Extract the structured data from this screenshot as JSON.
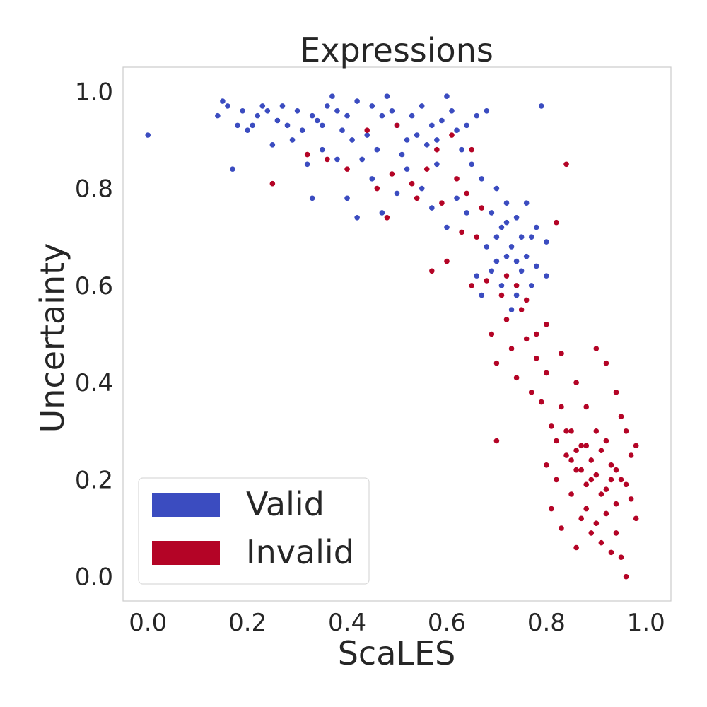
{
  "chart_data": {
    "type": "scatter",
    "title": "Expressions",
    "xlabel": "ScaLES",
    "ylabel": "Uncertainty",
    "xlim": [
      -0.05,
      1.05
    ],
    "ylim": [
      -0.05,
      1.05
    ],
    "xticks": [
      "0.0",
      "0.2",
      "0.4",
      "0.6",
      "0.8",
      "1.0"
    ],
    "yticks": [
      "0.0",
      "0.2",
      "0.4",
      "0.6",
      "0.8",
      "1.0"
    ],
    "grid": false,
    "legend": {
      "position": "bottom-left"
    },
    "series": [
      {
        "name": "Valid",
        "color": "#3b4cc0",
        "points": [
          [
            0.0,
            0.91
          ],
          [
            0.14,
            0.95
          ],
          [
            0.15,
            0.98
          ],
          [
            0.16,
            0.97
          ],
          [
            0.17,
            0.84
          ],
          [
            0.18,
            0.93
          ],
          [
            0.19,
            0.96
          ],
          [
            0.2,
            0.92
          ],
          [
            0.21,
            0.93
          ],
          [
            0.22,
            0.95
          ],
          [
            0.23,
            0.97
          ],
          [
            0.24,
            0.96
          ],
          [
            0.25,
            0.89
          ],
          [
            0.26,
            0.94
          ],
          [
            0.27,
            0.97
          ],
          [
            0.28,
            0.93
          ],
          [
            0.29,
            0.9
          ],
          [
            0.3,
            0.96
          ],
          [
            0.31,
            0.92
          ],
          [
            0.32,
            0.85
          ],
          [
            0.33,
            0.95
          ],
          [
            0.34,
            0.94
          ],
          [
            0.35,
            0.93
          ],
          [
            0.36,
            0.97
          ],
          [
            0.37,
            0.99
          ],
          [
            0.38,
            0.96
          ],
          [
            0.39,
            0.92
          ],
          [
            0.4,
            0.95
          ],
          [
            0.41,
            0.9
          ],
          [
            0.42,
            0.98
          ],
          [
            0.43,
            0.86
          ],
          [
            0.44,
            0.91
          ],
          [
            0.45,
            0.97
          ],
          [
            0.46,
            0.88
          ],
          [
            0.47,
            0.95
          ],
          [
            0.48,
            0.99
          ],
          [
            0.49,
            0.96
          ],
          [
            0.5,
            0.93
          ],
          [
            0.51,
            0.87
          ],
          [
            0.52,
            0.9
          ],
          [
            0.53,
            0.95
          ],
          [
            0.54,
            0.91
          ],
          [
            0.55,
            0.97
          ],
          [
            0.56,
            0.89
          ],
          [
            0.57,
            0.93
          ],
          [
            0.58,
            0.9
          ],
          [
            0.59,
            0.94
          ],
          [
            0.6,
            0.99
          ],
          [
            0.61,
            0.96
          ],
          [
            0.62,
            0.92
          ],
          [
            0.63,
            0.88
          ],
          [
            0.64,
            0.93
          ],
          [
            0.65,
            0.85
          ],
          [
            0.66,
            0.95
          ],
          [
            0.67,
            0.82
          ],
          [
            0.68,
            0.96
          ],
          [
            0.69,
            0.75
          ],
          [
            0.7,
            0.8
          ],
          [
            0.71,
            0.72
          ],
          [
            0.72,
            0.77
          ],
          [
            0.73,
            0.68
          ],
          [
            0.74,
            0.74
          ],
          [
            0.75,
            0.63
          ],
          [
            0.76,
            0.66
          ],
          [
            0.77,
            0.7
          ],
          [
            0.78,
            0.64
          ],
          [
            0.79,
            0.97
          ],
          [
            0.8,
            0.62
          ],
          [
            0.7,
            0.65
          ],
          [
            0.71,
            0.6
          ],
          [
            0.68,
            0.68
          ],
          [
            0.69,
            0.63
          ],
          [
            0.72,
            0.66
          ],
          [
            0.74,
            0.58
          ],
          [
            0.73,
            0.55
          ],
          [
            0.75,
            0.7
          ],
          [
            0.66,
            0.62
          ],
          [
            0.67,
            0.58
          ],
          [
            0.45,
            0.82
          ],
          [
            0.4,
            0.78
          ],
          [
            0.38,
            0.86
          ],
          [
            0.35,
            0.88
          ],
          [
            0.52,
            0.84
          ],
          [
            0.55,
            0.8
          ],
          [
            0.58,
            0.85
          ],
          [
            0.62,
            0.78
          ],
          [
            0.64,
            0.75
          ],
          [
            0.6,
            0.72
          ],
          [
            0.57,
            0.76
          ],
          [
            0.5,
            0.79
          ],
          [
            0.47,
            0.75
          ],
          [
            0.42,
            0.74
          ],
          [
            0.33,
            0.78
          ],
          [
            0.76,
            0.77
          ],
          [
            0.78,
            0.72
          ],
          [
            0.8,
            0.69
          ],
          [
            0.72,
            0.73
          ],
          [
            0.7,
            0.7
          ],
          [
            0.74,
            0.65
          ],
          [
            0.77,
            0.6
          ]
        ]
      },
      {
        "name": "Invalid",
        "color": "#b40426",
        "points": [
          [
            0.25,
            0.81
          ],
          [
            0.32,
            0.87
          ],
          [
            0.36,
            0.86
          ],
          [
            0.4,
            0.84
          ],
          [
            0.44,
            0.92
          ],
          [
            0.46,
            0.8
          ],
          [
            0.48,
            0.74
          ],
          [
            0.49,
            0.83
          ],
          [
            0.5,
            0.93
          ],
          [
            0.53,
            0.81
          ],
          [
            0.54,
            0.78
          ],
          [
            0.56,
            0.84
          ],
          [
            0.57,
            0.63
          ],
          [
            0.58,
            0.88
          ],
          [
            0.59,
            0.77
          ],
          [
            0.6,
            0.65
          ],
          [
            0.61,
            0.91
          ],
          [
            0.62,
            0.82
          ],
          [
            0.63,
            0.71
          ],
          [
            0.64,
            0.79
          ],
          [
            0.65,
            0.88
          ],
          [
            0.66,
            0.7
          ],
          [
            0.67,
            0.76
          ],
          [
            0.68,
            0.61
          ],
          [
            0.69,
            0.5
          ],
          [
            0.7,
            0.44
          ],
          [
            0.71,
            0.58
          ],
          [
            0.72,
            0.53
          ],
          [
            0.73,
            0.47
          ],
          [
            0.74,
            0.41
          ],
          [
            0.75,
            0.55
          ],
          [
            0.76,
            0.49
          ],
          [
            0.77,
            0.38
          ],
          [
            0.78,
            0.45
          ],
          [
            0.79,
            0.36
          ],
          [
            0.8,
            0.42
          ],
          [
            0.81,
            0.31
          ],
          [
            0.82,
            0.28
          ],
          [
            0.83,
            0.35
          ],
          [
            0.84,
            0.25
          ],
          [
            0.85,
            0.3
          ],
          [
            0.86,
            0.22
          ],
          [
            0.87,
            0.27
          ],
          [
            0.88,
            0.19
          ],
          [
            0.89,
            0.24
          ],
          [
            0.9,
            0.21
          ],
          [
            0.91,
            0.26
          ],
          [
            0.92,
            0.18
          ],
          [
            0.93,
            0.23
          ],
          [
            0.94,
            0.15
          ],
          [
            0.95,
            0.2
          ],
          [
            0.96,
            0.0
          ],
          [
            0.97,
            0.25
          ],
          [
            0.98,
            0.27
          ],
          [
            0.84,
            0.85
          ],
          [
            0.82,
            0.73
          ],
          [
            0.7,
            0.28
          ],
          [
            0.65,
            0.6
          ],
          [
            0.72,
            0.62
          ],
          [
            0.74,
            0.6
          ],
          [
            0.76,
            0.57
          ],
          [
            0.78,
            0.5
          ],
          [
            0.8,
            0.52
          ],
          [
            0.83,
            0.46
          ],
          [
            0.86,
            0.4
          ],
          [
            0.88,
            0.35
          ],
          [
            0.9,
            0.47
          ],
          [
            0.92,
            0.44
          ],
          [
            0.94,
            0.38
          ],
          [
            0.95,
            0.33
          ],
          [
            0.96,
            0.3
          ],
          [
            0.85,
            0.17
          ],
          [
            0.87,
            0.12
          ],
          [
            0.89,
            0.09
          ],
          [
            0.91,
            0.07
          ],
          [
            0.93,
            0.05
          ],
          [
            0.95,
            0.04
          ],
          [
            0.82,
            0.2
          ],
          [
            0.8,
            0.23
          ],
          [
            0.83,
            0.1
          ],
          [
            0.86,
            0.06
          ],
          [
            0.88,
            0.14
          ],
          [
            0.9,
            0.11
          ],
          [
            0.92,
            0.13
          ],
          [
            0.94,
            0.09
          ],
          [
            0.97,
            0.16
          ],
          [
            0.98,
            0.12
          ],
          [
            0.81,
            0.14
          ],
          [
            0.84,
            0.3
          ],
          [
            0.9,
            0.3
          ],
          [
            0.92,
            0.28
          ],
          [
            0.89,
            0.2
          ],
          [
            0.87,
            0.22
          ],
          [
            0.93,
            0.2
          ],
          [
            0.91,
            0.17
          ],
          [
            0.88,
            0.27
          ],
          [
            0.86,
            0.26
          ],
          [
            0.94,
            0.22
          ],
          [
            0.96,
            0.19
          ],
          [
            0.85,
            0.24
          ]
        ]
      }
    ]
  }
}
